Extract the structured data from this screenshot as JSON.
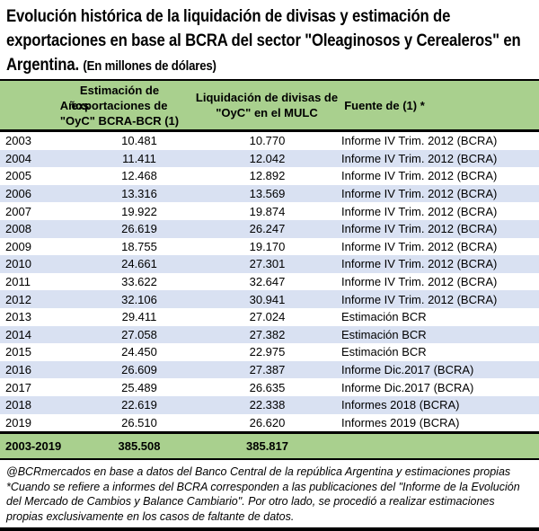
{
  "title": {
    "line1": "Evolución histórica de la liquidación de divisas y estimación de",
    "line2": "exportaciones en base al BCRA del sector \"Oleaginosos y Cerealeros\" en",
    "line3_main": "Argentina.",
    "line3_sub": "(En millones de dólares)"
  },
  "chart_data": {
    "type": "table",
    "columns": [
      "Años",
      "Estimación de exportaciones de \"OyC\" BCRA-BCR (1)",
      "Liquidación de divisas de \"OyC\" en el MULC",
      "Fuente de (1) *"
    ],
    "header_lines": {
      "col1": [
        "Años"
      ],
      "col2": [
        "Estimación de",
        "exportaciones de",
        "\"OyC\" BCRA-BCR (1)"
      ],
      "col3": [
        "Liquidación de divisas de",
        "\"OyC\" en el MULC"
      ],
      "col4": [
        "Fuente de (1) *"
      ]
    },
    "rows": [
      {
        "year": "2003",
        "estimacion": "10.481",
        "liquidacion": "10.770",
        "fuente": "Informe IV Trim. 2012 (BCRA)"
      },
      {
        "year": "2004",
        "estimacion": "11.411",
        "liquidacion": "12.042",
        "fuente": "Informe IV Trim. 2012 (BCRA)"
      },
      {
        "year": "2005",
        "estimacion": "12.468",
        "liquidacion": "12.892",
        "fuente": "Informe IV Trim. 2012 (BCRA)"
      },
      {
        "year": "2006",
        "estimacion": "13.316",
        "liquidacion": "13.569",
        "fuente": "Informe IV Trim. 2012 (BCRA)"
      },
      {
        "year": "2007",
        "estimacion": "19.922",
        "liquidacion": "19.874",
        "fuente": "Informe IV Trim. 2012 (BCRA)"
      },
      {
        "year": "2008",
        "estimacion": "26.619",
        "liquidacion": "26.247",
        "fuente": "Informe IV Trim. 2012 (BCRA)"
      },
      {
        "year": "2009",
        "estimacion": "18.755",
        "liquidacion": "19.170",
        "fuente": "Informe IV Trim. 2012 (BCRA)"
      },
      {
        "year": "2010",
        "estimacion": "24.661",
        "liquidacion": "27.301",
        "fuente": "Informe IV Trim. 2012 (BCRA)"
      },
      {
        "year": "2011",
        "estimacion": "33.622",
        "liquidacion": "32.647",
        "fuente": "Informe IV Trim. 2012 (BCRA)"
      },
      {
        "year": "2012",
        "estimacion": "32.106",
        "liquidacion": "30.941",
        "fuente": "Informe IV Trim. 2012 (BCRA)"
      },
      {
        "year": "2013",
        "estimacion": "29.411",
        "liquidacion": "27.024",
        "fuente": "Estimación BCR"
      },
      {
        "year": "2014",
        "estimacion": "27.058",
        "liquidacion": "27.382",
        "fuente": "Estimación BCR"
      },
      {
        "year": "2015",
        "estimacion": "24.450",
        "liquidacion": "22.975",
        "fuente": "Estimación BCR"
      },
      {
        "year": "2016",
        "estimacion": "26.609",
        "liquidacion": "27.387",
        "fuente": "Informe Dic.2017 (BCRA)"
      },
      {
        "year": "2017",
        "estimacion": "25.489",
        "liquidacion": "26.635",
        "fuente": "Informe Dic.2017 (BCRA)"
      },
      {
        "year": "2018",
        "estimacion": "22.619",
        "liquidacion": "22.338",
        "fuente": "Informes 2018 (BCRA)"
      },
      {
        "year": "2019",
        "estimacion": "26.510",
        "liquidacion": "26.620",
        "fuente": "Informes 2019 (BCRA)"
      }
    ],
    "total": {
      "year": "2003-2019",
      "estimacion": "385.508",
      "liquidacion": "385.817",
      "fuente": ""
    }
  },
  "footer": {
    "line1": "@BCRmercados en base a datos del Banco Central de la república Argentina y estimaciones propias",
    "line2": "*Cuando se refiere a informes del BCRA corresponden a las publicaciones del \"Informe de la Evolución del Mercado de Cambios y Balance Cambiario\". Por otro lado, se procedió a realizar estimaciones propias exclusivamente en los casos de faltante de datos."
  },
  "colors": {
    "header_green": "#a9d08e",
    "band_blue": "#d9e1f2",
    "border_black": "#000000"
  }
}
